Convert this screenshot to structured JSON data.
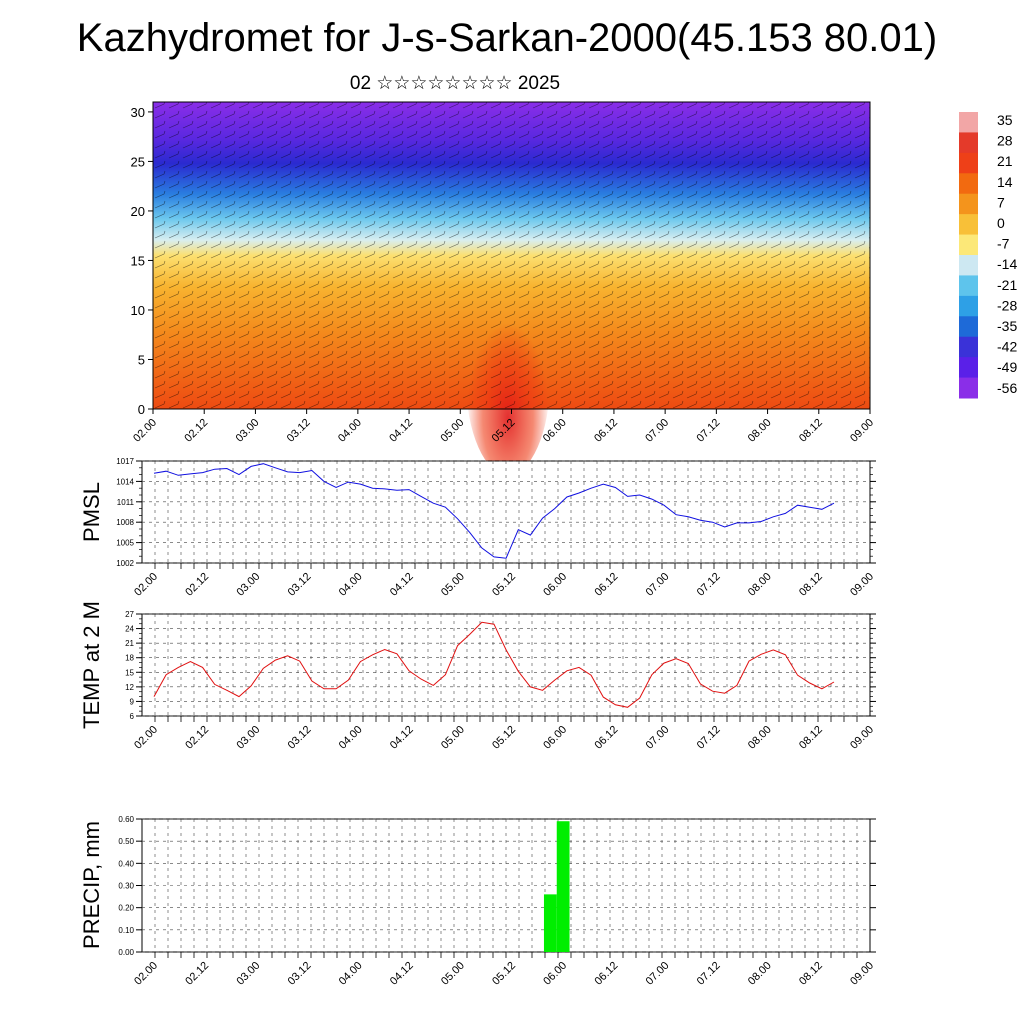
{
  "title": "Kazhydromet for J-s-Sarkan-2000(45.153 80.01)",
  "subtitle": "02 ☆☆☆☆☆☆☆☆ 2025",
  "time_ticks": [
    "02.00",
    "02.12",
    "03.00",
    "03.12",
    "04.00",
    "04.12",
    "05.00",
    "05.12",
    "06.00",
    "06.12",
    "07.00",
    "07.12",
    "08.00",
    "08.12",
    "09.00"
  ],
  "colorbar": {
    "labels": [
      "35",
      "28",
      "21",
      "14",
      "7",
      "0",
      "-7",
      "-14",
      "-21",
      "-28",
      "-35",
      "-42",
      "-49",
      "-56"
    ],
    "colors": [
      "#f2a6a6",
      "#e43a2a",
      "#ee4018",
      "#f26a10",
      "#f4941c",
      "#f8c038",
      "#fce878",
      "#cde8f2",
      "#5ec4ec",
      "#2ea0e6",
      "#1e6ad8",
      "#3a32d8",
      "#5a20e8",
      "#8a2ee8"
    ]
  },
  "chart_data": [
    {
      "type": "heatmap",
      "title": "",
      "ylabel": "",
      "ylim": [
        0,
        31
      ],
      "y_ticks": [
        0,
        5,
        10,
        15,
        20,
        25,
        30
      ],
      "x_ticks": [
        "02.00",
        "02.12",
        "03.00",
        "03.12",
        "04.00",
        "04.12",
        "05.00",
        "05.12",
        "06.00",
        "06.12",
        "07.00",
        "07.12",
        "08.00",
        "08.12",
        "09.00"
      ],
      "colorbar_range": [
        -56,
        35
      ],
      "description_layers": "temperature shading with wind barbs"
    },
    {
      "type": "line",
      "ylabel": "PMSL",
      "ylim": [
        1002,
        1017
      ],
      "y_ticks": [
        1002,
        1005,
        1008,
        1011,
        1014,
        1017
      ],
      "x_ticks": [
        "02.00",
        "02.12",
        "03.00",
        "03.12",
        "04.00",
        "04.12",
        "05.00",
        "05.12",
        "06.00",
        "06.12",
        "07.00",
        "07.12",
        "08.00",
        "08.12",
        "09.00"
      ],
      "color": "#1010e0",
      "values": [
        1015.2,
        1015.5,
        1014.9,
        1015.1,
        1015.3,
        1015.8,
        1015.9,
        1015.0,
        1016.2,
        1016.6,
        1016.0,
        1015.4,
        1015.3,
        1015.6,
        1014.0,
        1013.1,
        1013.9,
        1013.6,
        1013.0,
        1012.9,
        1012.7,
        1012.8,
        1011.8,
        1010.8,
        1010.2,
        1008.5,
        1006.5,
        1004.2,
        1002.9,
        1002.7,
        1006.9,
        1006.1,
        1008.6,
        1010.0,
        1011.7,
        1012.3,
        1013.0,
        1013.6,
        1013.1,
        1011.8,
        1012.0,
        1011.4,
        1010.5,
        1009.1,
        1008.8,
        1008.3,
        1008.0,
        1007.3,
        1007.9,
        1007.9,
        1008.1,
        1008.8,
        1009.3,
        1010.5,
        1010.2,
        1009.9,
        1010.8
      ]
    },
    {
      "type": "line",
      "ylabel": "TEMP at 2 M",
      "ylim": [
        6,
        27
      ],
      "y_ticks": [
        6,
        9,
        12,
        15,
        18,
        21,
        24,
        27
      ],
      "x_ticks": [
        "02.00",
        "02.12",
        "03.00",
        "03.12",
        "04.00",
        "04.12",
        "05.00",
        "05.12",
        "06.00",
        "06.12",
        "07.00",
        "07.12",
        "08.00",
        "08.12",
        "09.00"
      ],
      "color": "#e01010",
      "values": [
        10.0,
        14.5,
        16.0,
        17.2,
        16.0,
        12.5,
        11.3,
        10.0,
        12.2,
        15.8,
        17.5,
        18.4,
        17.3,
        13.2,
        11.6,
        11.6,
        13.4,
        17.2,
        18.6,
        19.7,
        18.8,
        15.3,
        13.6,
        12.3,
        14.5,
        20.5,
        22.8,
        25.3,
        24.9,
        19.6,
        15.2,
        12.0,
        11.3,
        13.4,
        15.3,
        16.0,
        14.4,
        9.9,
        8.3,
        7.8,
        9.7,
        14.5,
        16.9,
        17.8,
        16.8,
        12.6,
        11.1,
        10.7,
        12.3,
        17.3,
        18.7,
        19.6,
        18.6,
        14.4,
        12.8,
        11.6,
        13.0
      ]
    },
    {
      "type": "bar",
      "ylabel": "PRECIP, mm",
      "ylim": [
        0,
        0.6
      ],
      "y_ticks": [
        "0.00",
        "0.10",
        "0.20",
        "0.30",
        "0.40",
        "0.50",
        "0.60"
      ],
      "x_ticks": [
        "02.00",
        "02.12",
        "03.00",
        "03.12",
        "04.00",
        "04.12",
        "05.00",
        "05.12",
        "06.00",
        "06.12",
        "07.00",
        "07.12",
        "08.00",
        "08.12",
        "09.00"
      ],
      "color": "#00ee00",
      "bars": [
        {
          "step": 31,
          "value": 0.26
        },
        {
          "step": 32,
          "value": 0.59
        }
      ]
    }
  ]
}
